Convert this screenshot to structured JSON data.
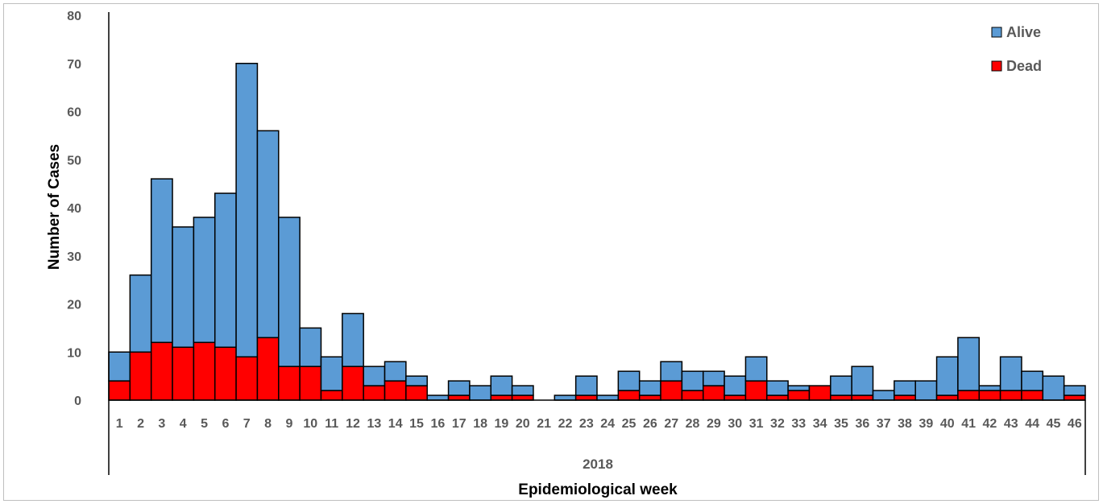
{
  "chart_data": {
    "type": "bar",
    "stacked": true,
    "title": "",
    "xlabel": "Epidemiological week",
    "ylabel": "Number of Cases",
    "group_label": "2018",
    "ylim": [
      0,
      80
    ],
    "yticks": [
      "0",
      "10",
      "20",
      "30",
      "40",
      "50",
      "60",
      "70",
      "80"
    ],
    "categories": [
      "1",
      "2",
      "3",
      "4",
      "5",
      "6",
      "7",
      "8",
      "9",
      "10",
      "11",
      "12",
      "13",
      "14",
      "15",
      "16",
      "17",
      "18",
      "19",
      "20",
      "21",
      "22",
      "23",
      "24",
      "25",
      "26",
      "27",
      "28",
      "29",
      "30",
      "31",
      "32",
      "33",
      "34",
      "35",
      "36",
      "37",
      "38",
      "39",
      "40",
      "41",
      "42",
      "43",
      "44",
      "45",
      "46"
    ],
    "series": [
      {
        "name": "Dead",
        "color": "#ff0000",
        "values": [
          4,
          10,
          12,
          11,
          12,
          11,
          9,
          13,
          7,
          7,
          2,
          7,
          3,
          4,
          3,
          0,
          1,
          0,
          1,
          1,
          0,
          0,
          1,
          0,
          2,
          1,
          4,
          2,
          3,
          1,
          4,
          1,
          2,
          3,
          1,
          1,
          0,
          1,
          0,
          1,
          2,
          2,
          2,
          2,
          0,
          1
        ]
      },
      {
        "name": "Alive",
        "color": "#5b9bd5",
        "values": [
          6,
          16,
          34,
          25,
          26,
          32,
          61,
          43,
          31,
          8,
          7,
          11,
          4,
          4,
          2,
          1,
          3,
          3,
          4,
          2,
          0,
          1,
          4,
          1,
          4,
          3,
          4,
          4,
          3,
          4,
          5,
          3,
          1,
          0,
          4,
          6,
          2,
          3,
          4,
          8,
          11,
          1,
          7,
          4,
          5,
          2
        ]
      }
    ],
    "legend": {
      "position": "top-right",
      "order": [
        "Alive",
        "Dead"
      ]
    },
    "grid": false
  }
}
